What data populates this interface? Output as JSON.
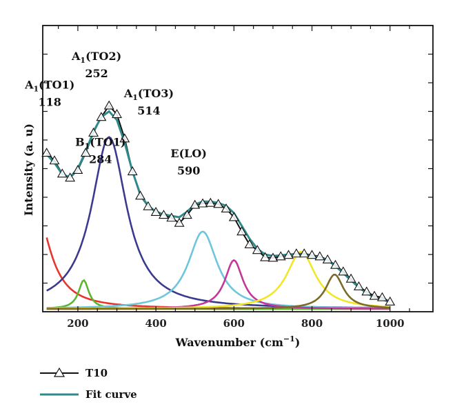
{
  "chart_data": {
    "type": "line",
    "title": "",
    "xlabel": "Wavenumber (cm",
    "xlabel_sup": "−1",
    "xlabel_tail": ")",
    "ylabel": "Intensity (a. u)",
    "xlim": [
      110,
      1110
    ],
    "ylim": [
      0,
      100
    ],
    "xticks": [
      200,
      400,
      600,
      800,
      1000
    ],
    "grid": false,
    "legend_position": "bottom-left",
    "annotations": [
      {
        "main": "A",
        "sub": "1",
        "tail": "(TO1)",
        "value": "118",
        "x": 128,
        "y": 78
      },
      {
        "main": "A",
        "sub": "1",
        "tail": "(TO2)",
        "value": "252",
        "x": 248,
        "y": 88
      },
      {
        "main": "B",
        "sub": "1",
        "tail": "(TO1)",
        "value": "284",
        "x": 258,
        "y": 58
      },
      {
        "main": "A",
        "sub": "1",
        "tail": "(TO3)",
        "value": "514",
        "x": 382,
        "y": 75
      },
      {
        "main": "E",
        "sub": "",
        "tail": "(LO)",
        "value": "590",
        "x": 484,
        "y": 54
      }
    ],
    "series": [
      {
        "name": "T10",
        "marker": "triangle",
        "color": "#111111",
        "x": [
          120,
          140,
          160,
          180,
          200,
          220,
          240,
          260,
          280,
          300,
          320,
          340,
          360,
          380,
          400,
          420,
          440,
          460,
          480,
          500,
          520,
          540,
          560,
          580,
          600,
          620,
          640,
          660,
          680,
          700,
          720,
          740,
          760,
          780,
          800,
          820,
          840,
          860,
          880,
          900,
          920,
          940,
          960,
          980,
          1000
        ],
        "y": [
          55.5,
          52.8,
          48.2,
          46.8,
          49.5,
          55.5,
          62.5,
          68.0,
          72.0,
          69.0,
          60.5,
          49.0,
          40.5,
          36.8,
          34.8,
          33.8,
          32.8,
          31.0,
          33.8,
          37.3,
          37.8,
          38.0,
          37.6,
          36.0,
          33.0,
          28.0,
          23.5,
          21.5,
          19.0,
          18.8,
          19.3,
          19.8,
          20.3,
          20.3,
          19.8,
          19.3,
          18.2,
          16.3,
          14.0,
          11.5,
          8.8,
          7.0,
          5.5,
          5.0,
          3.5
        ]
      },
      {
        "name": "Fit curve",
        "color": "#2e8b8b",
        "x": [
          120,
          140,
          160,
          180,
          200,
          220,
          240,
          260,
          280,
          300,
          320,
          340,
          360,
          380,
          400,
          420,
          440,
          460,
          480,
          500,
          520,
          540,
          560,
          580,
          600,
          620,
          640,
          660,
          680,
          700,
          720,
          740,
          760,
          780,
          800,
          820,
          840,
          860,
          880,
          900,
          920,
          940,
          960,
          980,
          1000
        ],
        "y": [
          55.0,
          52.0,
          48.0,
          47.0,
          50.0,
          56.0,
          63.0,
          68.0,
          70.0,
          67.0,
          59.0,
          49.0,
          41.0,
          37.0,
          35.0,
          34.0,
          33.5,
          33.0,
          35.0,
          37.5,
          38.5,
          38.5,
          38.0,
          37.0,
          34.5,
          30.0,
          25.5,
          22.0,
          20.0,
          19.5,
          19.7,
          20.0,
          20.2,
          20.0,
          19.5,
          19.0,
          18.0,
          16.0,
          13.5,
          11.0,
          8.5,
          6.5,
          5.0,
          4.2,
          3.5
        ]
      }
    ],
    "components": [
      {
        "center": 90,
        "amp": 36,
        "width": 45,
        "color": "#e8352b"
      },
      {
        "center": 215,
        "amp": 10,
        "width": 16,
        "color": "#5cb531"
      },
      {
        "center": 280,
        "amp": 60,
        "width": 55,
        "color": "#3a3a8f"
      },
      {
        "center": 520,
        "amp": 27,
        "width": 45,
        "color": "#6ec6dc"
      },
      {
        "center": 600,
        "amp": 17,
        "width": 28,
        "color": "#c2389a"
      },
      {
        "center": 772,
        "amp": 20,
        "width": 45,
        "color": "#f2e629"
      },
      {
        "center": 858,
        "amp": 12,
        "width": 28,
        "color": "#7b6b2a"
      }
    ],
    "baseline_color": "#5a5a3a"
  }
}
